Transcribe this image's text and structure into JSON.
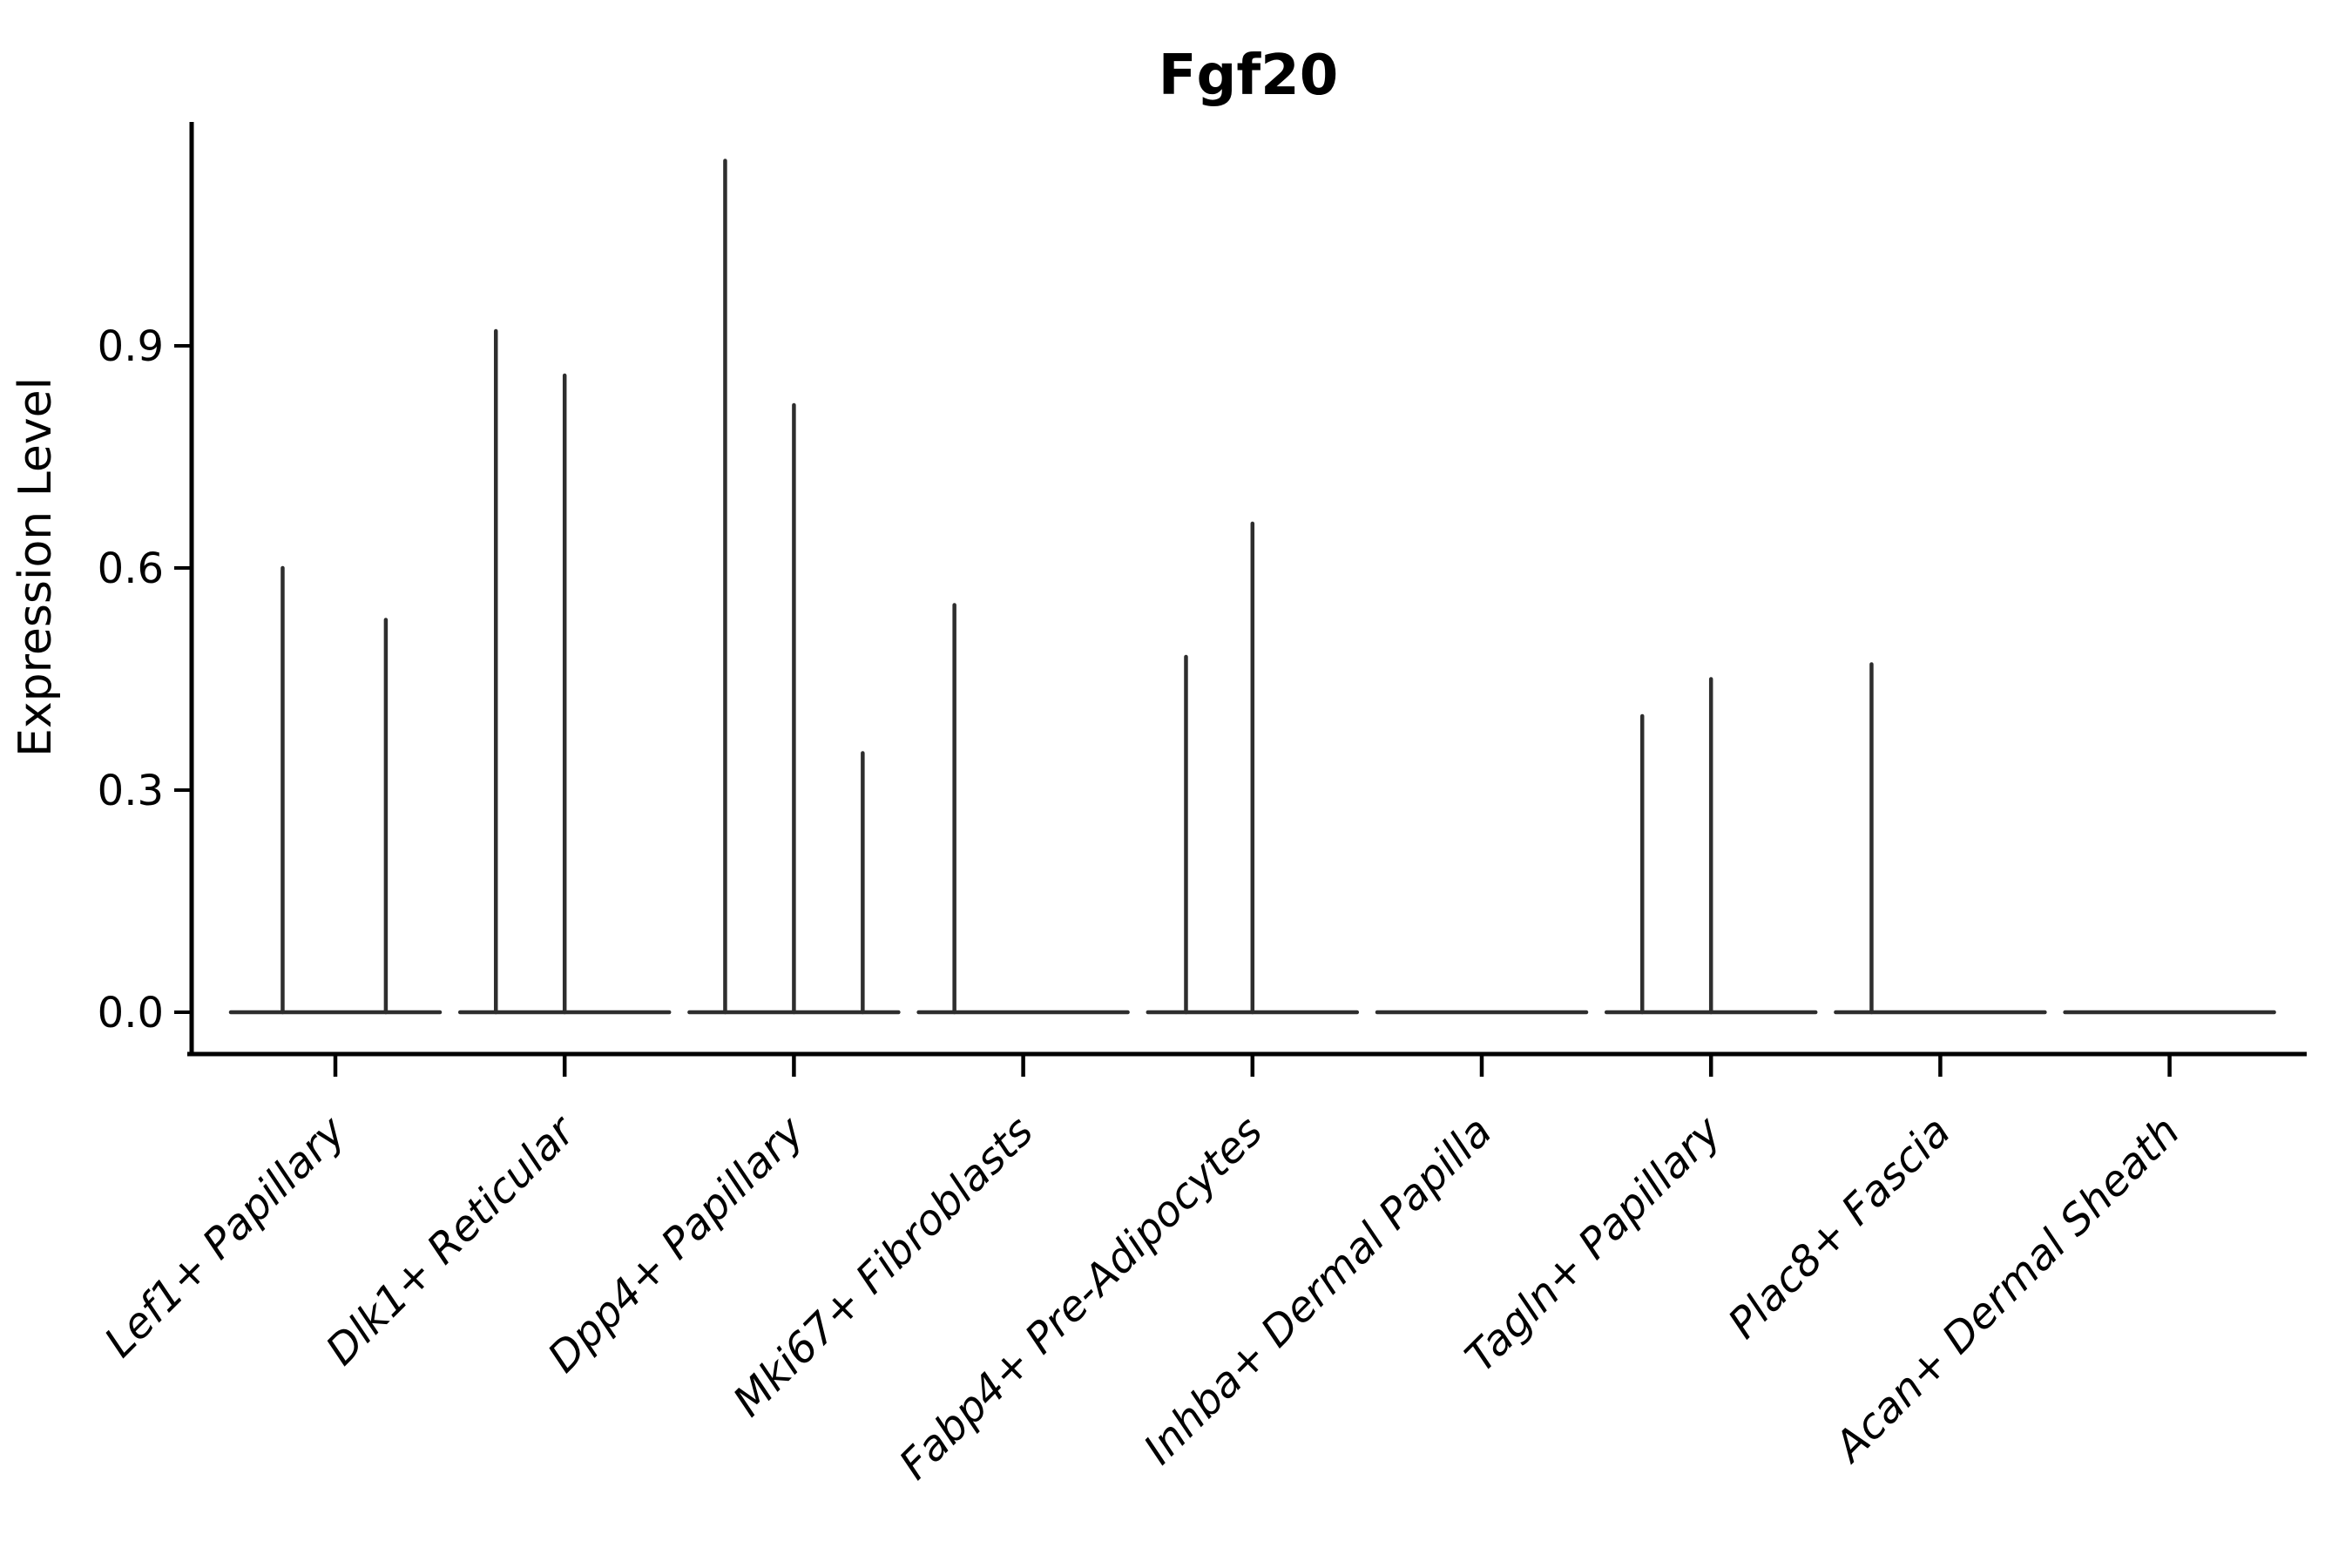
{
  "figure": {
    "title": "Fgf20",
    "ylabel": "Expression Level"
  },
  "chart_data": {
    "type": "violin",
    "title": "Fgf20",
    "xlabel": "",
    "ylabel": "Expression Level",
    "yticks": [
      0.0,
      0.3,
      0.6,
      0.9
    ],
    "ytick_labels": [
      "0.0",
      "0.3",
      "0.6",
      "0.9"
    ],
    "ylim": [
      -0.06,
      1.2
    ],
    "grid": false,
    "legend": "none",
    "x_label_rotation_deg": 45,
    "categories": [
      "Lef1+ Papillary",
      "Dlk1+ Reticular",
      "Dpp4+ Papillary",
      "Mki67+ Fibroblasts",
      "Fabp4+ Pre-Adipocytes",
      "Inhba+ Dermal Papilla",
      "Tagln+ Papillary",
      "Plac8+ Fascia",
      "Acan+ Dermal Sheath"
    ],
    "series": [
      {
        "category": "Lef1+ Papillary",
        "baseline_value": 0,
        "spikes": [
          {
            "value": 0.6,
            "offset": -0.23
          },
          {
            "value": 0.53,
            "offset": 0.22
          }
        ]
      },
      {
        "category": "Dlk1+ Reticular",
        "baseline_value": 0,
        "spikes": [
          {
            "value": 0.92,
            "offset": -0.3
          },
          {
            "value": 0.86,
            "offset": 0.0
          }
        ]
      },
      {
        "category": "Dpp4+ Papillary",
        "baseline_value": 0,
        "spikes": [
          {
            "value": 1.15,
            "offset": -0.3
          },
          {
            "value": 0.82,
            "offset": 0.0
          },
          {
            "value": 0.35,
            "offset": 0.3
          }
        ]
      },
      {
        "category": "Mki67+ Fibroblasts",
        "baseline_value": 0,
        "spikes": [
          {
            "value": 0.55,
            "offset": -0.3
          }
        ]
      },
      {
        "category": "Fabp4+ Pre-Adipocytes",
        "baseline_value": 0,
        "spikes": [
          {
            "value": 0.48,
            "offset": -0.29
          },
          {
            "value": 0.66,
            "offset": 0.0
          }
        ]
      },
      {
        "category": "Inhba+ Dermal Papilla",
        "baseline_value": 0,
        "spikes": []
      },
      {
        "category": "Tagln+ Papillary",
        "baseline_value": 0,
        "spikes": [
          {
            "value": 0.4,
            "offset": -0.3
          },
          {
            "value": 0.45,
            "offset": 0.0
          }
        ]
      },
      {
        "category": "Plac8+ Fascia",
        "baseline_value": 0,
        "spikes": [
          {
            "value": 0.47,
            "offset": -0.3
          }
        ]
      },
      {
        "category": "Acan+ Dermal Sheath",
        "baseline_value": 0,
        "spikes": []
      }
    ],
    "colors": {
      "violin": "#2e2e2e",
      "axis": "#000000",
      "text": "#000000",
      "background": "#ffffff"
    }
  }
}
